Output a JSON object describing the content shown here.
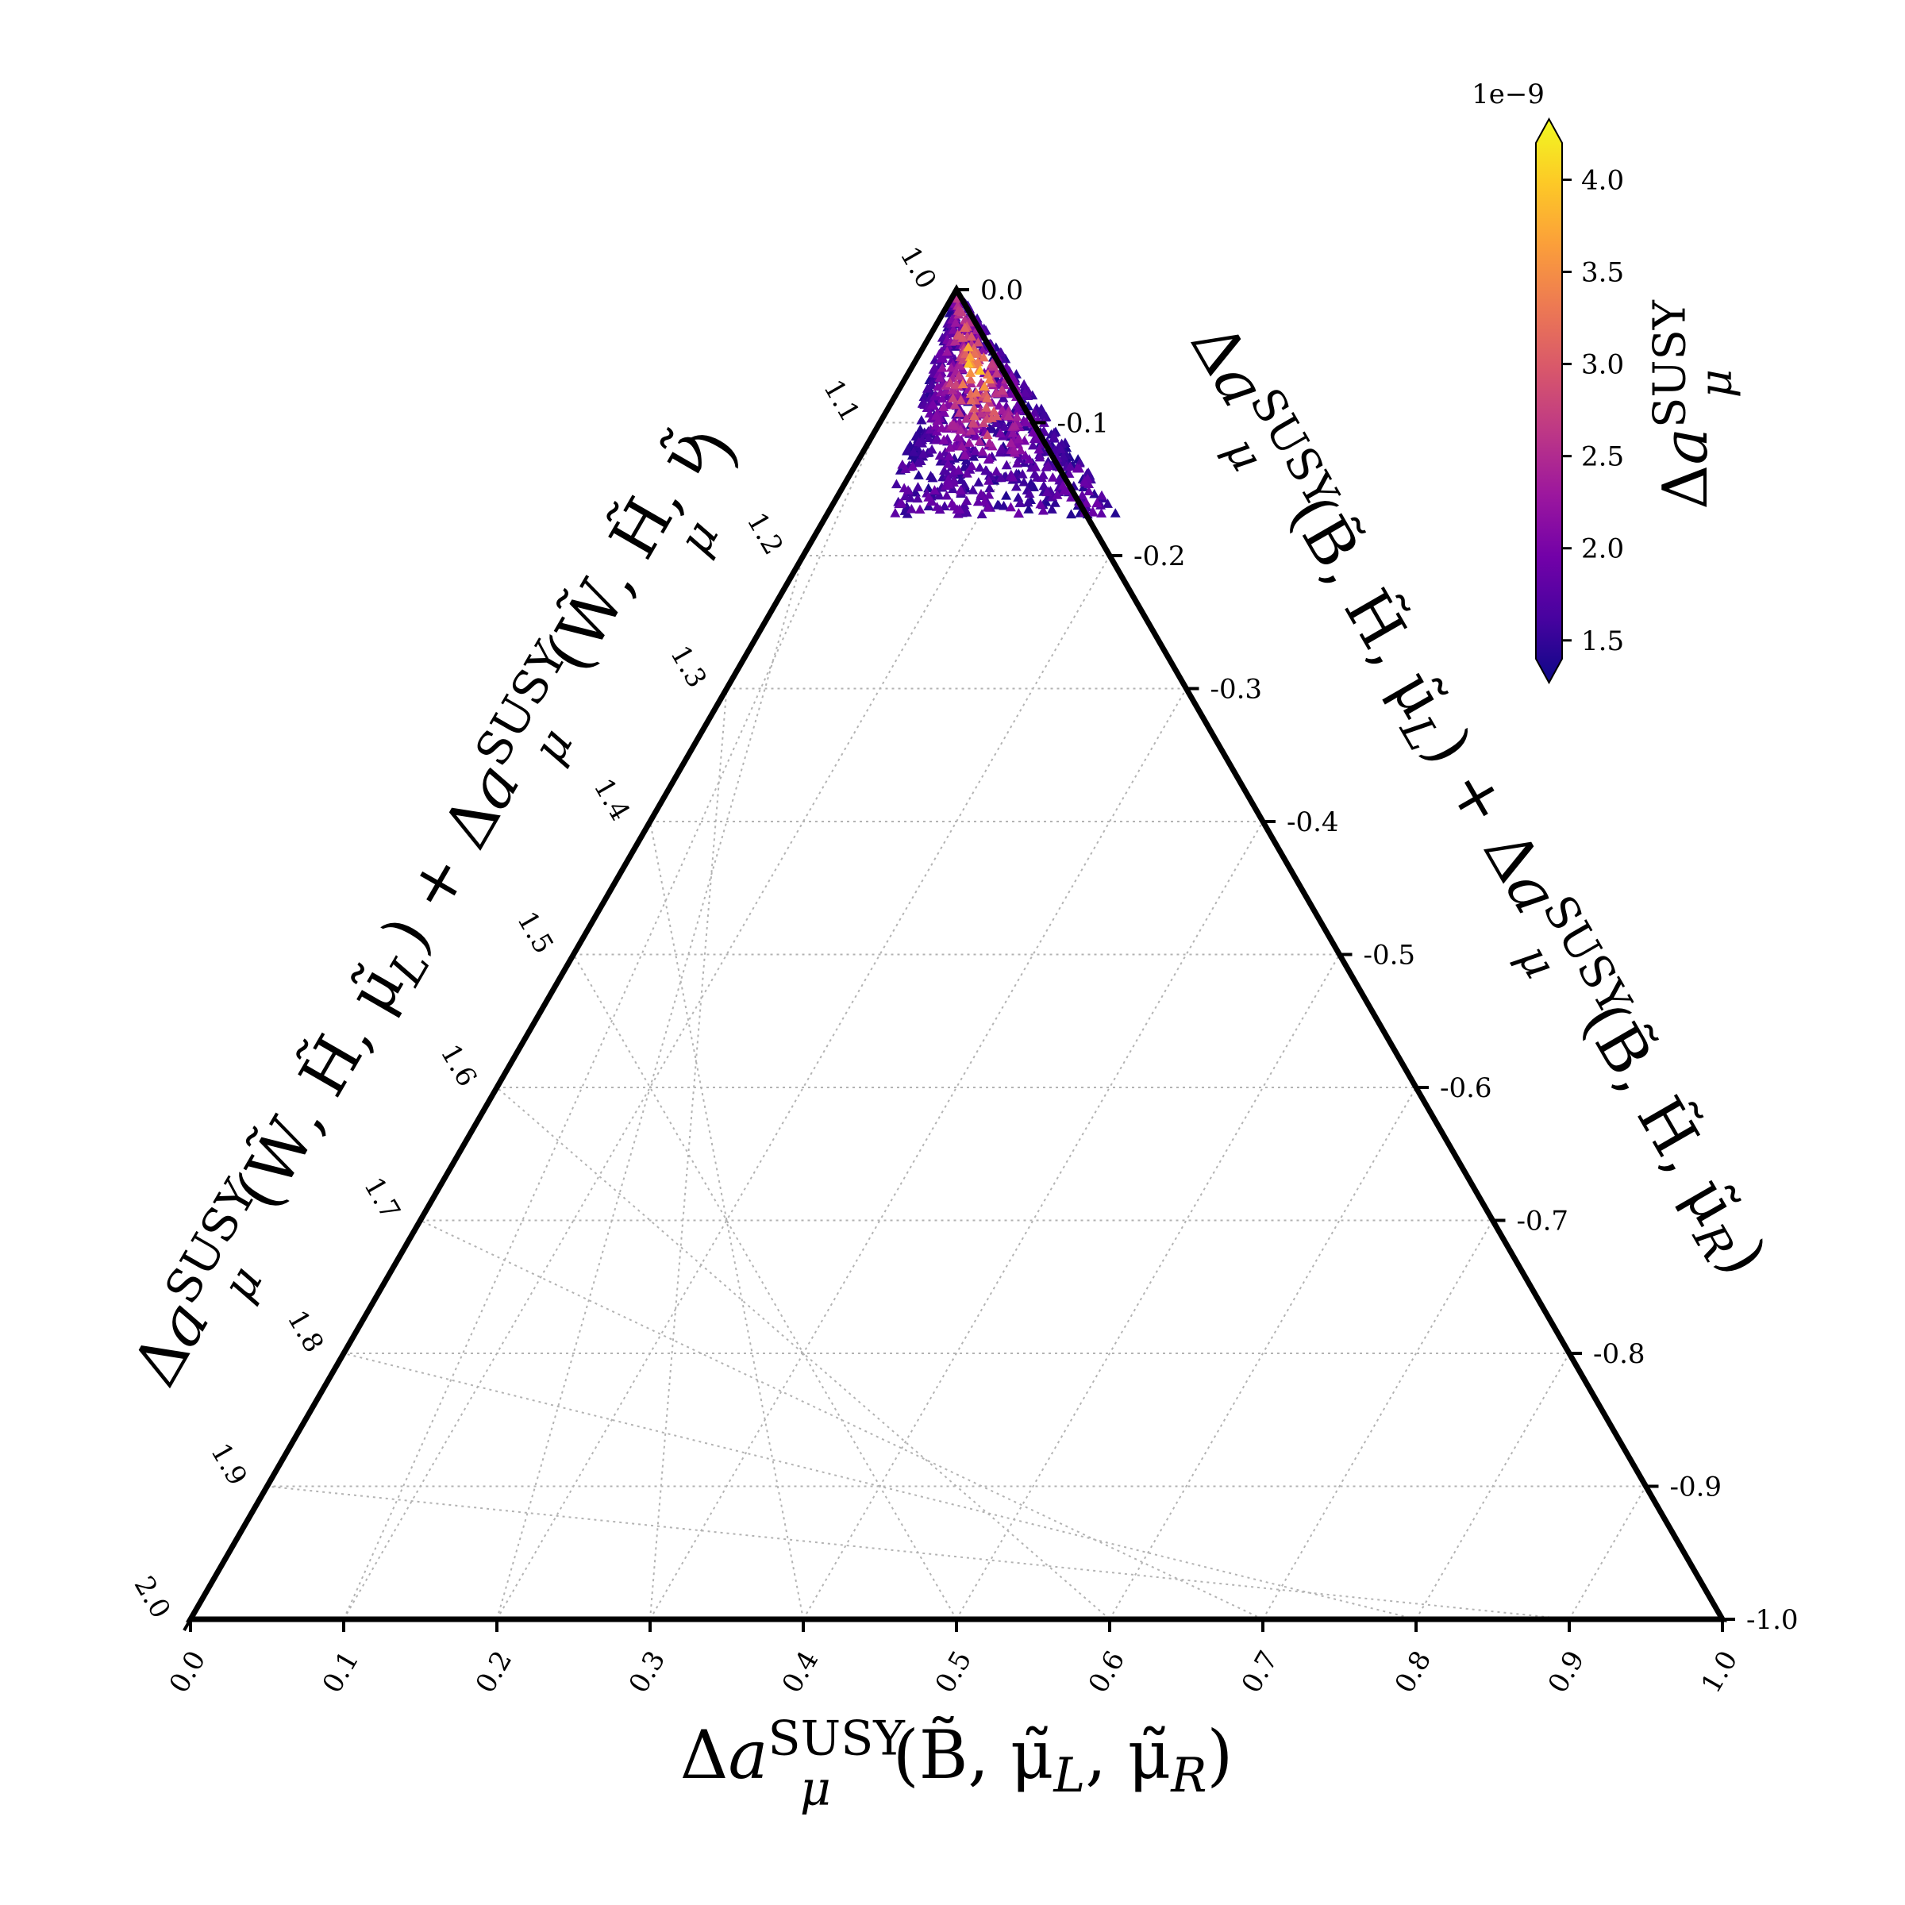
{
  "chart_data": {
    "type": "scatter",
    "subtype": "ternary",
    "marker": "triangle",
    "bottom_axis": {
      "label_parts": [
        "Δ",
        "a",
        "SUSY",
        "μ",
        "(B̃, μ̃",
        "L",
        ", μ̃",
        "R",
        ")"
      ],
      "ticks": [
        "0.0",
        "0.1",
        "0.2",
        "0.3",
        "0.4",
        "0.5",
        "0.6",
        "0.7",
        "0.8",
        "0.9",
        "1.0"
      ],
      "range": [
        0.0,
        1.0
      ]
    },
    "left_axis": {
      "label_parts": [
        "Δ",
        "a",
        "SUSY",
        "μ",
        "(W̃, H̃, μ̃",
        "L",
        ") + ",
        "Δ",
        "a",
        "SUSY",
        "μ",
        "(W̃, H̃, ν̃",
        "μ",
        ")"
      ],
      "ticks": [
        "1.0",
        "1.1",
        "1.2",
        "1.3",
        "1.4",
        "1.5",
        "1.6",
        "1.7",
        "1.8",
        "1.9",
        "2.0"
      ],
      "range": [
        1.0,
        2.0
      ]
    },
    "right_axis": {
      "label_parts": [
        "Δ",
        "a",
        "SUSY",
        "μ",
        "(B̃, H̃, μ̃",
        "L",
        ") + ",
        "Δ",
        "a",
        "SUSY",
        "μ",
        "(B̃, H̃, μ̃",
        "R",
        ")"
      ],
      "ticks": [
        "0.0",
        "-0.1",
        "-0.2",
        "-0.3",
        "-0.4",
        "-0.5",
        "-0.6",
        "-0.7",
        "-0.8",
        "-0.9",
        "-1.0"
      ],
      "range": [
        0.0,
        -1.0
      ]
    },
    "colorbar": {
      "label_parts": [
        "Δ",
        "a",
        "SUSY",
        "μ"
      ],
      "multiplier": "1e−9",
      "ticks": [
        "1.5",
        "2.0",
        "2.5",
        "3.0",
        "3.5",
        "4.0"
      ],
      "range": [
        1.4,
        4.2
      ],
      "extend": "both",
      "colormap": "plasma",
      "stops": [
        "#0d0887",
        "#46039f",
        "#7201a8",
        "#9c179e",
        "#bd3786",
        "#d8576b",
        "#ed7953",
        "#fb9f3a",
        "#fdca26",
        "#f0f921"
      ]
    },
    "cluster": {
      "description_values": {
        "bottom_range": [
          0.46,
          0.58
        ],
        "right_range": [
          0.0,
          -0.17
        ],
        "color_range": [
          1.5,
          4.2
        ]
      }
    },
    "grid": true
  }
}
